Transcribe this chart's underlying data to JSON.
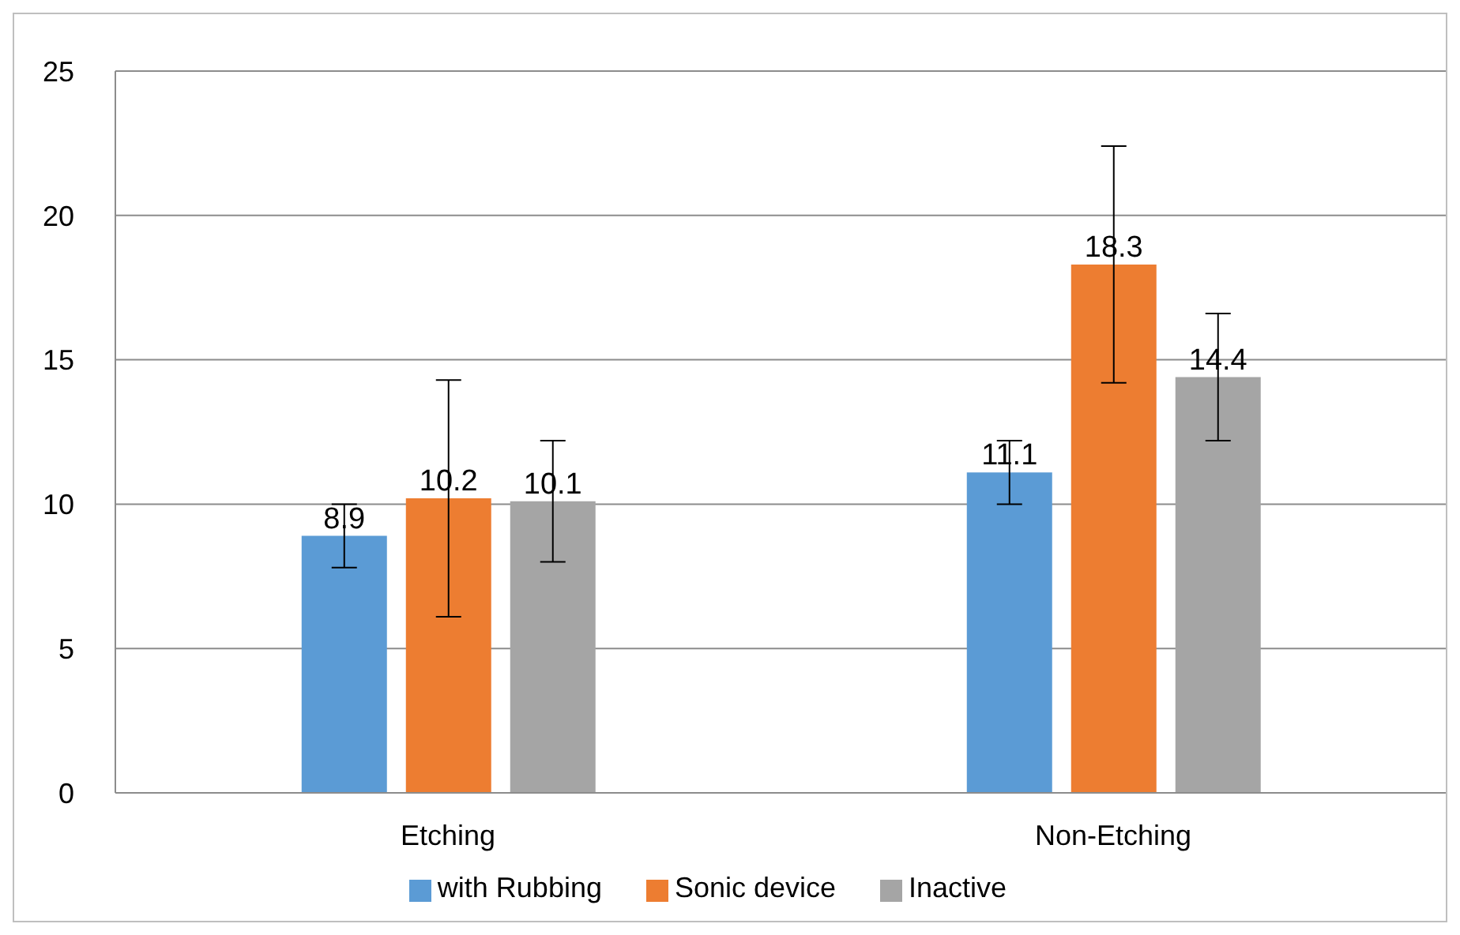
{
  "chart_data": {
    "type": "bar",
    "categories": [
      "Etching",
      "Non-Etching"
    ],
    "series": [
      {
        "name": "with Rubbing",
        "color": "#5b9bd5",
        "values": [
          8.9,
          11.1
        ],
        "errors": [
          1.1,
          1.1
        ]
      },
      {
        "name": "Sonic device",
        "color": "#ed7d31",
        "values": [
          10.2,
          18.3
        ],
        "errors": [
          4.1,
          4.1
        ]
      },
      {
        "name": "Inactive",
        "color": "#a5a5a5",
        "values": [
          10.1,
          14.4
        ],
        "errors": [
          2.1,
          2.2
        ]
      }
    ],
    "ylim": [
      0,
      25
    ],
    "yticks": [
      0,
      5,
      10,
      15,
      20,
      25
    ],
    "grid": "y",
    "legend": "bottom",
    "data_labels": true
  }
}
